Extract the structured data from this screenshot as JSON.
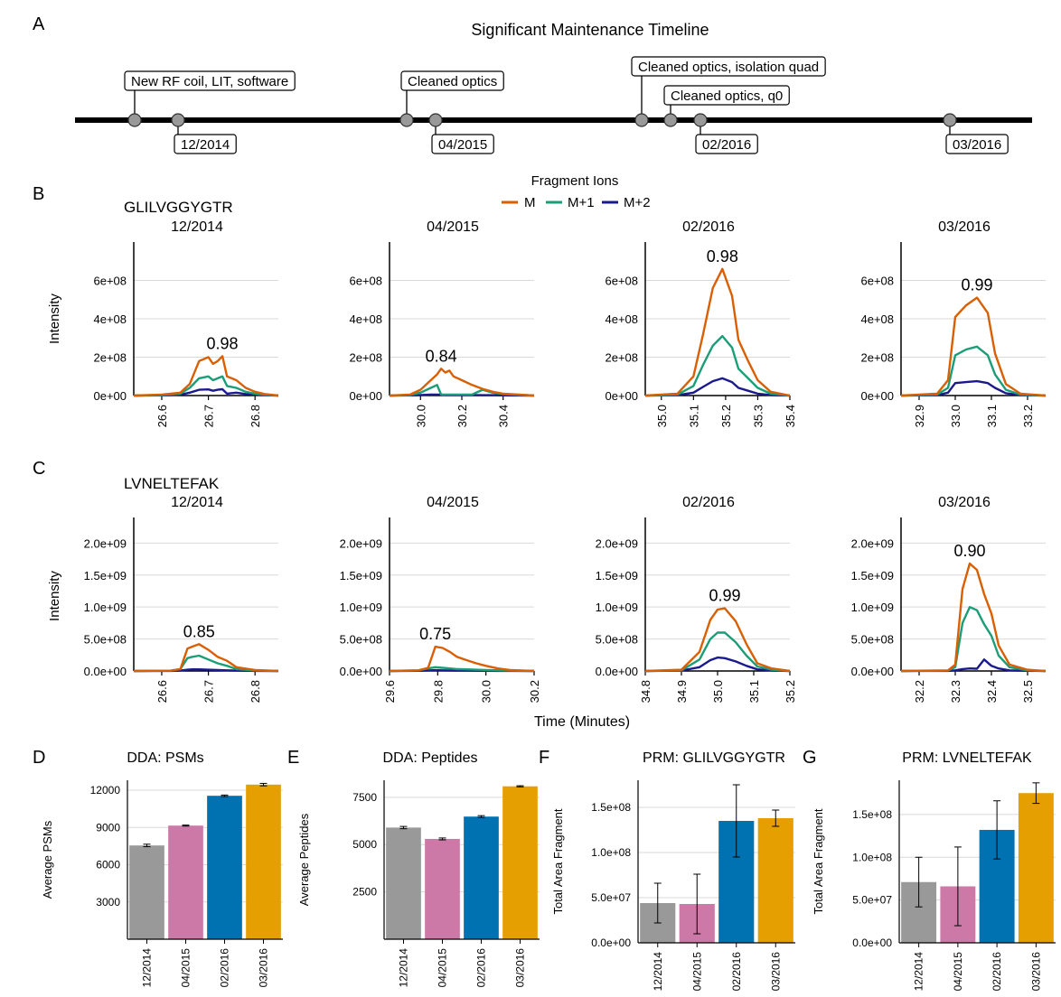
{
  "colors": {
    "M": "#d95f02",
    "M1": "#1b9e77",
    "M2": "#1a1a8c",
    "bar_colors": [
      "#999999",
      "#cc79a7",
      "#0072b2",
      "#e69f00"
    ],
    "timeline": "#000000",
    "node": "#999999",
    "grid": "#d9d9d9"
  },
  "panel_letters": {
    "A": "A",
    "B": "B",
    "C": "C",
    "D": "D",
    "E": "E",
    "F": "F",
    "G": "G"
  },
  "timeline": {
    "title": "Significant Maintenance Timeline",
    "events": [
      {
        "label": "New RF coil, LIT, software",
        "side": "top",
        "level": 1
      },
      {
        "label": "12/2014",
        "side": "bottom",
        "level": 1
      },
      {
        "label": "Cleaned optics",
        "side": "top",
        "level": 1
      },
      {
        "label": "04/2015",
        "side": "bottom",
        "level": 1
      },
      {
        "label": "Cleaned optics, isolation quad",
        "side": "top",
        "level": 2
      },
      {
        "label": "Cleaned optics, q0",
        "side": "top",
        "level": 0
      },
      {
        "label": "02/2016",
        "side": "bottom",
        "level": 1
      },
      {
        "label": "03/2016",
        "side": "bottom",
        "level": 1
      }
    ]
  },
  "legend": {
    "title": "Fragment Ions",
    "items": [
      "M",
      "M+1",
      "M+2"
    ]
  },
  "axis_labels": {
    "intensity": "Intensity",
    "time": "Time (Minutes)"
  },
  "chart_data": [
    {
      "type": "line",
      "peptide": "GLILVGGYGTR",
      "ylabel": "Intensity",
      "yticks": [
        "0e+00",
        "2e+08",
        "4e+08",
        "6e+08"
      ],
      "ytick_values": [
        0,
        200000000,
        400000000,
        600000000
      ],
      "ylim": [
        0,
        800000000
      ],
      "facets": [
        {
          "title": "12/2014",
          "xlim": [
            26.54,
            26.85
          ],
          "xticks": [
            "26.6",
            "26.7",
            "26.8"
          ],
          "xtick_values": [
            26.6,
            26.7,
            26.8
          ],
          "annotation": "0.98",
          "x": [
            26.54,
            26.6,
            26.64,
            26.66,
            26.68,
            26.7,
            26.71,
            26.72,
            26.73,
            26.74,
            26.76,
            26.78,
            26.8,
            26.82,
            26.85
          ],
          "M": [
            0,
            5000000,
            15000000,
            60000000,
            180000000,
            200000000,
            165000000,
            180000000,
            205000000,
            100000000,
            80000000,
            40000000,
            20000000,
            8000000,
            0
          ],
          "M1": [
            0,
            3000000,
            10000000,
            40000000,
            90000000,
            100000000,
            80000000,
            90000000,
            100000000,
            50000000,
            40000000,
            20000000,
            10000000,
            4000000,
            0
          ],
          "M2": [
            0,
            1000000,
            4000000,
            15000000,
            30000000,
            32000000,
            25000000,
            30000000,
            33000000,
            10000000,
            15000000,
            8000000,
            4000000,
            2000000,
            0
          ]
        },
        {
          "title": "04/2015",
          "xlim": [
            29.85,
            30.55
          ],
          "xticks": [
            "30.0",
            "30.2",
            "30.4"
          ],
          "xtick_values": [
            30.0,
            30.2,
            30.4
          ],
          "annotation": "0.84",
          "x": [
            29.85,
            29.95,
            30.0,
            30.05,
            30.08,
            30.1,
            30.12,
            30.14,
            30.16,
            30.2,
            30.25,
            30.3,
            30.35,
            30.4,
            30.55
          ],
          "M": [
            0,
            5000000,
            30000000,
            80000000,
            110000000,
            140000000,
            120000000,
            130000000,
            100000000,
            80000000,
            55000000,
            35000000,
            20000000,
            10000000,
            0
          ],
          "M1": [
            0,
            3000000,
            15000000,
            40000000,
            55000000,
            5000000,
            5000000,
            5000000,
            5000000,
            5000000,
            5000000,
            30000000,
            15000000,
            8000000,
            0
          ],
          "M2": [
            0,
            1000000,
            3000000,
            5000000,
            5000000,
            4000000,
            3000000,
            3000000,
            3000000,
            3000000,
            3000000,
            2000000,
            2000000,
            1000000,
            0
          ]
        },
        {
          "title": "02/2016",
          "xlim": [
            34.95,
            35.4
          ],
          "xticks": [
            "35.0",
            "35.1",
            "35.2",
            "35.3",
            "35.4"
          ],
          "xtick_values": [
            35.0,
            35.1,
            35.2,
            35.3,
            35.4
          ],
          "annotation": "0.98",
          "x": [
            34.95,
            35.05,
            35.1,
            35.13,
            35.16,
            35.19,
            35.22,
            35.24,
            35.27,
            35.3,
            35.34,
            35.4
          ],
          "M": [
            0,
            10000000,
            100000000,
            320000000,
            560000000,
            660000000,
            520000000,
            290000000,
            180000000,
            80000000,
            20000000,
            0
          ],
          "M1": [
            0,
            5000000,
            50000000,
            160000000,
            260000000,
            310000000,
            250000000,
            140000000,
            90000000,
            40000000,
            10000000,
            0
          ],
          "M2": [
            0,
            2000000,
            15000000,
            45000000,
            75000000,
            90000000,
            70000000,
            40000000,
            25000000,
            10000000,
            3000000,
            0
          ]
        },
        {
          "title": "03/2016",
          "xlim": [
            32.85,
            33.25
          ],
          "xticks": [
            "32.9",
            "33.0",
            "33.1",
            "33.2"
          ],
          "xtick_values": [
            32.9,
            33.0,
            33.1,
            33.2
          ],
          "annotation": "0.99",
          "x": [
            32.85,
            32.95,
            32.98,
            33.0,
            33.03,
            33.06,
            33.09,
            33.11,
            33.14,
            33.18,
            33.25
          ],
          "M": [
            0,
            10000000,
            80000000,
            410000000,
            470000000,
            510000000,
            430000000,
            220000000,
            60000000,
            10000000,
            0
          ],
          "M1": [
            0,
            5000000,
            40000000,
            210000000,
            240000000,
            255000000,
            210000000,
            110000000,
            30000000,
            5000000,
            0
          ],
          "M2": [
            0,
            2000000,
            15000000,
            65000000,
            70000000,
            75000000,
            65000000,
            40000000,
            12000000,
            2000000,
            0
          ]
        }
      ]
    },
    {
      "type": "line",
      "peptide": "LVNELTEFAK",
      "ylabel": "Intensity",
      "yticks": [
        "0.0e+00",
        "5.0e+08",
        "1.0e+09",
        "1.5e+09",
        "2.0e+09"
      ],
      "ytick_values": [
        0,
        500000000,
        1000000000,
        1500000000,
        2000000000
      ],
      "ylim": [
        0,
        2400000000
      ],
      "facets": [
        {
          "title": "12/2014",
          "xlim": [
            26.54,
            26.85
          ],
          "xticks": [
            "26.6",
            "26.7",
            "26.8"
          ],
          "xtick_values": [
            26.6,
            26.7,
            26.8
          ],
          "annotation": "0.85",
          "x": [
            26.54,
            26.62,
            26.64,
            26.655,
            26.665,
            26.68,
            26.7,
            26.72,
            26.74,
            26.76,
            26.8,
            26.85
          ],
          "M": [
            0,
            5000000,
            30000000,
            350000000,
            380000000,
            420000000,
            330000000,
            220000000,
            160000000,
            60000000,
            15000000,
            0
          ],
          "M1": [
            0,
            5000000,
            30000000,
            200000000,
            220000000,
            240000000,
            180000000,
            120000000,
            80000000,
            30000000,
            8000000,
            0
          ],
          "M2": [
            0,
            2000000,
            5000000,
            20000000,
            25000000,
            25000000,
            20000000,
            15000000,
            10000000,
            5000000,
            2000000,
            0
          ]
        },
        {
          "title": "04/2015",
          "xlim": [
            29.6,
            30.2
          ],
          "xticks": [
            "29.6",
            "29.8",
            "30.0",
            "30.2"
          ],
          "xtick_values": [
            29.6,
            29.8,
            30.0,
            30.2
          ],
          "annotation": "0.75",
          "x": [
            29.6,
            29.72,
            29.76,
            29.79,
            29.82,
            29.85,
            29.88,
            29.92,
            29.96,
            30.0,
            30.05,
            30.1,
            30.2
          ],
          "M": [
            0,
            10000000,
            50000000,
            380000000,
            360000000,
            300000000,
            220000000,
            170000000,
            120000000,
            80000000,
            40000000,
            15000000,
            0
          ],
          "M1": [
            0,
            10000000,
            40000000,
            60000000,
            50000000,
            40000000,
            30000000,
            25000000,
            20000000,
            15000000,
            10000000,
            5000000,
            0
          ],
          "M2": [
            0,
            3000000,
            8000000,
            12000000,
            10000000,
            8000000,
            6000000,
            5000000,
            4000000,
            3000000,
            2000000,
            1000000,
            0
          ]
        },
        {
          "title": "02/2016",
          "xlim": [
            34.8,
            35.2
          ],
          "xticks": [
            "34.8",
            "34.9",
            "35.0",
            "35.1",
            "35.2"
          ],
          "xtick_values": [
            34.8,
            34.9,
            35.0,
            35.1,
            35.2
          ],
          "annotation": "0.99",
          "x": [
            34.8,
            34.9,
            34.95,
            34.98,
            35.0,
            35.02,
            35.05,
            35.08,
            35.11,
            35.15,
            35.2
          ],
          "M": [
            0,
            20000000,
            300000000,
            800000000,
            960000000,
            980000000,
            780000000,
            420000000,
            120000000,
            40000000,
            0
          ],
          "M1": [
            0,
            10000000,
            180000000,
            500000000,
            600000000,
            600000000,
            450000000,
            240000000,
            70000000,
            20000000,
            0
          ],
          "M2": [
            0,
            5000000,
            60000000,
            170000000,
            210000000,
            200000000,
            150000000,
            80000000,
            25000000,
            8000000,
            0
          ]
        },
        {
          "title": "03/2016",
          "xlim": [
            32.15,
            32.55
          ],
          "xticks": [
            "32.2",
            "32.3",
            "32.4",
            "32.5"
          ],
          "xtick_values": [
            32.2,
            32.3,
            32.4,
            32.5
          ],
          "annotation": "0.90",
          "x": [
            32.15,
            32.28,
            32.3,
            32.32,
            32.34,
            32.36,
            32.38,
            32.4,
            32.42,
            32.45,
            32.5,
            32.55
          ],
          "M": [
            0,
            10000000,
            100000000,
            1280000000,
            1680000000,
            1580000000,
            1200000000,
            900000000,
            400000000,
            100000000,
            20000000,
            0
          ],
          "M1": [
            0,
            5000000,
            60000000,
            750000000,
            1000000000,
            950000000,
            730000000,
            550000000,
            240000000,
            60000000,
            10000000,
            0
          ],
          "M2": [
            0,
            2000000,
            10000000,
            30000000,
            40000000,
            35000000,
            180000000,
            80000000,
            40000000,
            10000000,
            3000000,
            0
          ]
        }
      ]
    },
    {
      "type": "bar",
      "title": "DDA: PSMs",
      "ylabel": "Average PSMs",
      "categories": [
        "12/2014",
        "04/2015",
        "02/2016",
        "03/2016"
      ],
      "values": [
        7550,
        9150,
        11550,
        12450
      ],
      "errors": [
        100,
        40,
        60,
        100
      ],
      "yticks": [
        "3000",
        "6000",
        "9000",
        "12000"
      ],
      "ytick_values": [
        3000,
        6000,
        9000,
        12000
      ],
      "ylim": [
        0,
        12800
      ]
    },
    {
      "type": "bar",
      "title": "DDA: Peptides",
      "ylabel": "Average Peptides",
      "categories": [
        "12/2014",
        "04/2015",
        "02/2016",
        "03/2016"
      ],
      "values": [
        5900,
        5300,
        6480,
        8080
      ],
      "errors": [
        60,
        50,
        50,
        30
      ],
      "yticks": [
        "2500",
        "5000",
        "7500"
      ],
      "ytick_values": [
        2500,
        5000,
        7500
      ],
      "ylim": [
        0,
        8400
      ]
    },
    {
      "type": "bar",
      "title": "PRM: GLILVGGYGTR",
      "ylabel": "Total Area Fragment",
      "categories": [
        "12/2014",
        "04/2015",
        "02/2016",
        "03/2016"
      ],
      "values": [
        44000000,
        43000000,
        135000000,
        138000000
      ],
      "errors": [
        22000000,
        33000000,
        40000000,
        9000000
      ],
      "yticks": [
        "0.0e+00",
        "5.0e+07",
        "1.0e+08",
        "1.5e+08"
      ],
      "ytick_values": [
        0,
        50000000,
        100000000,
        150000000
      ],
      "ylim": [
        0,
        180000000
      ]
    },
    {
      "type": "bar",
      "title": "PRM: LVNELTEFAK",
      "ylabel": "Total Area Fragment",
      "categories": [
        "12/2014",
        "04/2015",
        "02/2016",
        "03/2016"
      ],
      "values": [
        71000000,
        66000000,
        132000000,
        175000000
      ],
      "errors": [
        29000000,
        46000000,
        34000000,
        12000000
      ],
      "yticks": [
        "0.0e+00",
        "5.0e+07",
        "1.0e+08",
        "1.5e+08"
      ],
      "ytick_values": [
        0,
        50000000,
        100000000,
        150000000
      ],
      "ylim": [
        0,
        190000000
      ]
    }
  ]
}
